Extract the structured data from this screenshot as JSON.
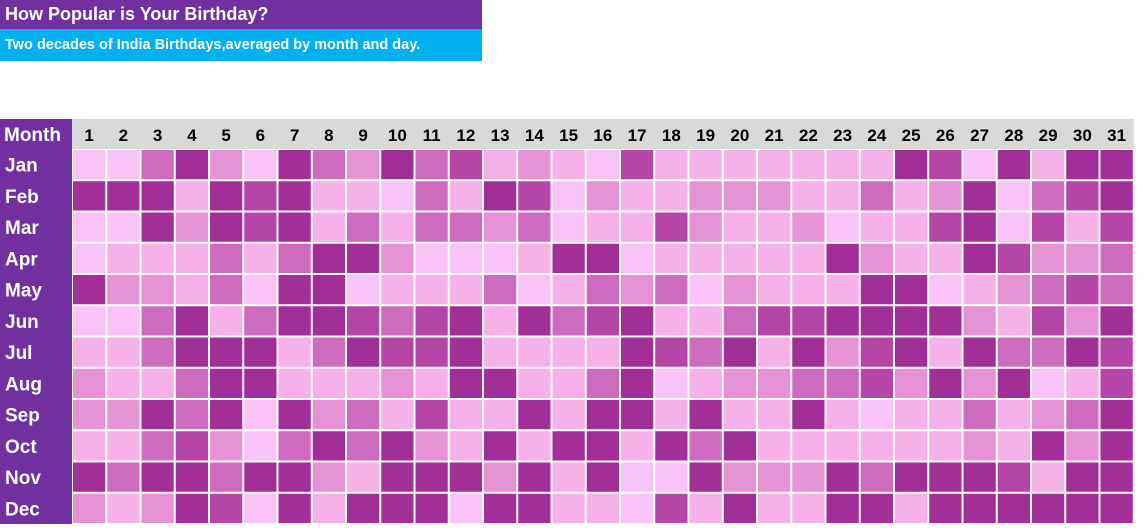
{
  "title": "How Popular is Your Birthday?",
  "subtitle": "Two decades of India Birthdays,averaged by month and day.",
  "colors": {
    "title_bg": "#7030a0",
    "subtitle_bg": "#00b0f0",
    "header_bg": "#d9d9d9",
    "month_col_bg": "#7030a0",
    "scale": [
      "#fac3f7",
      "#f7b1e9",
      "#e693d6",
      "#cd6bbf",
      "#b545a7",
      "#a22f98"
    ]
  },
  "chart_data": {
    "type": "heatmap",
    "corner_label": "Month",
    "x_labels": [
      "1",
      "2",
      "3",
      "4",
      "5",
      "6",
      "7",
      "8",
      "9",
      "10",
      "11",
      "12",
      "13",
      "14",
      "15",
      "16",
      "17",
      "18",
      "19",
      "20",
      "21",
      "22",
      "23",
      "24",
      "25",
      "26",
      "27",
      "28",
      "29",
      "30",
      "31"
    ],
    "y_labels": [
      "Jan",
      "Feb",
      "Mar",
      "Apr",
      "May",
      "Jun",
      "Jul",
      "Aug",
      "Sep",
      "Oct",
      "Nov",
      "Dec"
    ],
    "levels": 6,
    "values": [
      [
        0,
        0,
        3,
        5,
        2,
        0,
        5,
        3,
        2,
        5,
        3,
        4,
        1,
        2,
        1,
        0,
        4,
        1,
        1,
        1,
        1,
        1,
        1,
        1,
        5,
        4,
        0,
        5,
        1,
        5,
        5
      ],
      [
        5,
        5,
        5,
        1,
        5,
        4,
        5,
        1,
        1,
        0,
        3,
        1,
        5,
        4,
        0,
        2,
        1,
        1,
        2,
        2,
        2,
        1,
        1,
        3,
        1,
        2,
        5,
        0,
        3,
        4,
        5
      ],
      [
        0,
        0,
        5,
        2,
        5,
        4,
        5,
        1,
        3,
        1,
        3,
        3,
        2,
        3,
        0,
        1,
        1,
        4,
        2,
        1,
        1,
        2,
        0,
        1,
        1,
        4,
        5,
        0,
        4,
        1,
        4
      ],
      [
        0,
        1,
        1,
        1,
        3,
        1,
        3,
        5,
        5,
        2,
        0,
        0,
        0,
        1,
        5,
        5,
        0,
        1,
        1,
        1,
        1,
        1,
        5,
        2,
        1,
        1,
        5,
        4,
        2,
        2,
        3
      ],
      [
        5,
        2,
        2,
        1,
        3,
        0,
        5,
        5,
        0,
        1,
        1,
        1,
        3,
        0,
        1,
        3,
        2,
        3,
        0,
        2,
        1,
        1,
        1,
        5,
        5,
        0,
        1,
        2,
        3,
        4,
        3
      ],
      [
        0,
        0,
        3,
        5,
        1,
        3,
        5,
        5,
        4,
        3,
        4,
        5,
        1,
        5,
        3,
        4,
        5,
        1,
        1,
        3,
        4,
        4,
        5,
        5,
        5,
        5,
        2,
        1,
        4,
        2,
        5
      ],
      [
        1,
        1,
        3,
        5,
        5,
        5,
        1,
        3,
        5,
        4,
        4,
        5,
        1,
        1,
        1,
        1,
        5,
        4,
        3,
        5,
        1,
        5,
        2,
        4,
        5,
        1,
        5,
        3,
        3,
        5,
        4
      ],
      [
        2,
        1,
        1,
        3,
        5,
        5,
        1,
        1,
        1,
        2,
        1,
        5,
        5,
        1,
        1,
        3,
        5,
        0,
        1,
        2,
        2,
        3,
        3,
        4,
        2,
        5,
        2,
        5,
        0,
        1,
        4
      ],
      [
        2,
        2,
        5,
        3,
        5,
        0,
        5,
        2,
        3,
        1,
        4,
        1,
        1,
        5,
        1,
        5,
        5,
        1,
        5,
        1,
        1,
        5,
        1,
        0,
        1,
        1,
        3,
        1,
        2,
        3,
        5
      ],
      [
        1,
        1,
        3,
        4,
        2,
        0,
        3,
        5,
        3,
        5,
        2,
        1,
        5,
        1,
        5,
        5,
        1,
        5,
        3,
        5,
        1,
        1,
        1,
        1,
        1,
        1,
        2,
        1,
        5,
        2,
        5
      ],
      [
        5,
        3,
        5,
        5,
        3,
        5,
        5,
        2,
        1,
        5,
        5,
        5,
        2,
        5,
        1,
        5,
        0,
        0,
        5,
        2,
        2,
        2,
        5,
        3,
        5,
        5,
        5,
        4,
        1,
        5,
        5
      ],
      [
        2,
        1,
        2,
        5,
        4,
        0,
        5,
        1,
        5,
        5,
        5,
        0,
        5,
        5,
        1,
        1,
        0,
        4,
        1,
        5,
        1,
        1,
        5,
        5,
        1,
        5,
        5,
        5,
        5,
        5,
        5
      ]
    ]
  }
}
